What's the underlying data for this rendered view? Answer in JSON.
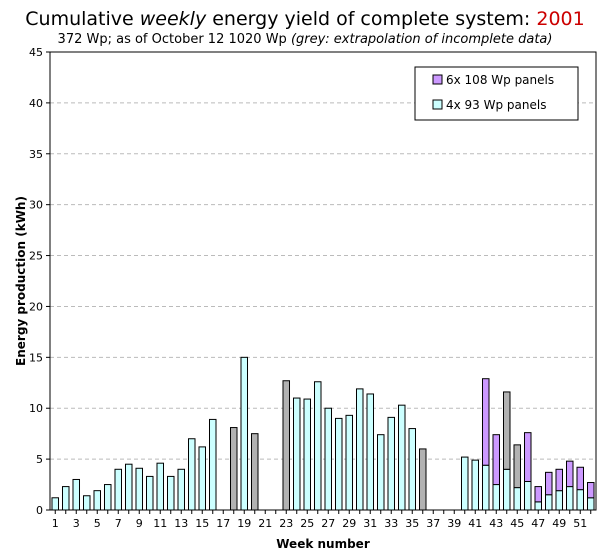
{
  "header": {
    "title_prefix": "Cumulative ",
    "title_emph": "weekly",
    "title_suffix": " energy yield of complete system: ",
    "title_year": "2001",
    "subtitle_main": "372 Wp; as of October 12 1020 Wp ",
    "subtitle_note": "(grey: extrapolation of incomplete data)"
  },
  "colors": {
    "panels_93": "#ccffff",
    "panels_108": "#cc99ff",
    "extrapolated": "#b2b2b2",
    "gridline": "#bbbbbb",
    "title_year": "#cc0000"
  },
  "chart_data": {
    "type": "bar",
    "stacked": true,
    "xlabel": "Week number",
    "ylabel": "Energy production (kWh)",
    "ylim": [
      0,
      45
    ],
    "yticks": [
      0,
      5,
      10,
      15,
      20,
      25,
      30,
      35,
      40,
      45
    ],
    "xtick_labels": [
      "1",
      "3",
      "5",
      "7",
      "9",
      "11",
      "13",
      "15",
      "17",
      "19",
      "21",
      "23",
      "25",
      "27",
      "29",
      "31",
      "33",
      "35",
      "37",
      "39",
      "41",
      "43",
      "45",
      "47",
      "49",
      "51"
    ],
    "grid": "horizontal dashed",
    "legend_position": "top-right",
    "legend": [
      {
        "label": "6x 108 Wp panels",
        "color": "#cc99ff"
      },
      {
        "label": "4x 93 Wp panels",
        "color": "#ccffff"
      }
    ],
    "weeks": [
      1,
      2,
      3,
      4,
      5,
      6,
      7,
      8,
      9,
      10,
      11,
      12,
      13,
      14,
      15,
      16,
      17,
      18,
      19,
      20,
      21,
      22,
      23,
      24,
      25,
      26,
      27,
      28,
      29,
      30,
      31,
      32,
      33,
      34,
      35,
      36,
      37,
      38,
      39,
      40,
      41,
      42,
      43,
      44,
      45,
      46,
      47,
      48,
      49,
      50,
      51,
      52
    ],
    "series": [
      {
        "name": "4x 93 Wp panels",
        "values": [
          1.2,
          2.3,
          3.0,
          1.4,
          1.9,
          2.5,
          4.0,
          4.5,
          4.1,
          3.3,
          4.6,
          3.3,
          4.0,
          7.0,
          6.2,
          8.9,
          0,
          0,
          15.0,
          0,
          0,
          0,
          0,
          11.0,
          10.9,
          12.6,
          10.0,
          9.0,
          9.3,
          11.9,
          11.4,
          7.4,
          9.1,
          10.3,
          8.0,
          0,
          0,
          0,
          0,
          5.2,
          4.9,
          4.4,
          2.5,
          4.0,
          2.2,
          2.8,
          0.8,
          1.5,
          1.9,
          2.3,
          2.0,
          1.2
        ]
      },
      {
        "name": "6x 108 Wp panels",
        "values": [
          0,
          0,
          0,
          0,
          0,
          0,
          0,
          0,
          0,
          0,
          0,
          0,
          0,
          0,
          0,
          0,
          0,
          0,
          0,
          0,
          0,
          0,
          0,
          0,
          0,
          0,
          0,
          0,
          0,
          0,
          0,
          0,
          0,
          0,
          0,
          0,
          0,
          0,
          0,
          0,
          0,
          8.5,
          4.9,
          0,
          0,
          4.8,
          1.5,
          2.2,
          2.1,
          2.5,
          2.2,
          1.5
        ]
      },
      {
        "name": "extrapolated",
        "values": [
          0,
          0,
          0,
          0,
          0,
          0,
          0,
          0,
          0,
          0,
          0,
          0,
          0,
          0,
          0,
          0,
          0,
          8.1,
          0,
          7.5,
          0,
          0,
          12.7,
          0,
          0,
          0,
          0,
          0,
          0,
          0,
          0,
          0,
          0,
          0,
          0,
          6.0,
          0,
          0,
          0,
          0,
          0,
          0,
          0,
          7.6,
          4.2,
          0,
          0,
          0,
          0,
          0,
          0,
          0
        ]
      }
    ]
  }
}
